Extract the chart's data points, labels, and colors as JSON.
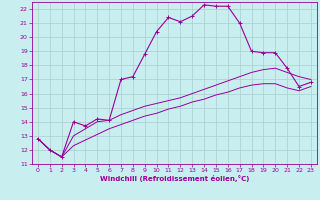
{
  "xlabel": "Windchill (Refroidissement éolien,°C)",
  "xlim": [
    -0.5,
    23.5
  ],
  "ylim": [
    11,
    22.5
  ],
  "background_color": "#c8eef0",
  "grid_color": "#aacccc",
  "line_color": "#990099",
  "xticks": [
    0,
    1,
    2,
    3,
    4,
    5,
    6,
    7,
    8,
    9,
    10,
    11,
    12,
    13,
    14,
    15,
    16,
    17,
    18,
    19,
    20,
    21,
    22,
    23
  ],
  "yticks": [
    11,
    12,
    13,
    14,
    15,
    16,
    17,
    18,
    19,
    20,
    21,
    22
  ],
  "series1_x": [
    0,
    1,
    2,
    3,
    4,
    5,
    6,
    7,
    8,
    9,
    10,
    11,
    12,
    13,
    14,
    15,
    16,
    17,
    18,
    19,
    20,
    21,
    22,
    23
  ],
  "series1_y": [
    12.8,
    12.0,
    11.5,
    14.0,
    13.7,
    14.2,
    14.1,
    17.0,
    17.2,
    18.8,
    20.4,
    21.4,
    21.1,
    21.5,
    22.3,
    22.2,
    22.2,
    21.0,
    19.0,
    18.9,
    18.9,
    17.8,
    16.5,
    16.8
  ],
  "series2_x": [
    0,
    1,
    2,
    3,
    4,
    5,
    6,
    7,
    8,
    9,
    10,
    11,
    12,
    13,
    14,
    15,
    16,
    17,
    18,
    19,
    20,
    21,
    22,
    23
  ],
  "series2_y": [
    12.8,
    12.0,
    11.5,
    13.0,
    13.5,
    14.0,
    14.1,
    14.5,
    14.8,
    15.1,
    15.3,
    15.5,
    15.7,
    16.0,
    16.3,
    16.6,
    16.9,
    17.2,
    17.5,
    17.7,
    17.8,
    17.5,
    17.2,
    17.0
  ],
  "series3_x": [
    0,
    1,
    2,
    3,
    4,
    5,
    6,
    7,
    8,
    9,
    10,
    11,
    12,
    13,
    14,
    15,
    16,
    17,
    18,
    19,
    20,
    21,
    22,
    23
  ],
  "series3_y": [
    12.8,
    12.0,
    11.5,
    12.3,
    12.7,
    13.1,
    13.5,
    13.8,
    14.1,
    14.4,
    14.6,
    14.9,
    15.1,
    15.4,
    15.6,
    15.9,
    16.1,
    16.4,
    16.6,
    16.7,
    16.7,
    16.4,
    16.2,
    16.5
  ]
}
